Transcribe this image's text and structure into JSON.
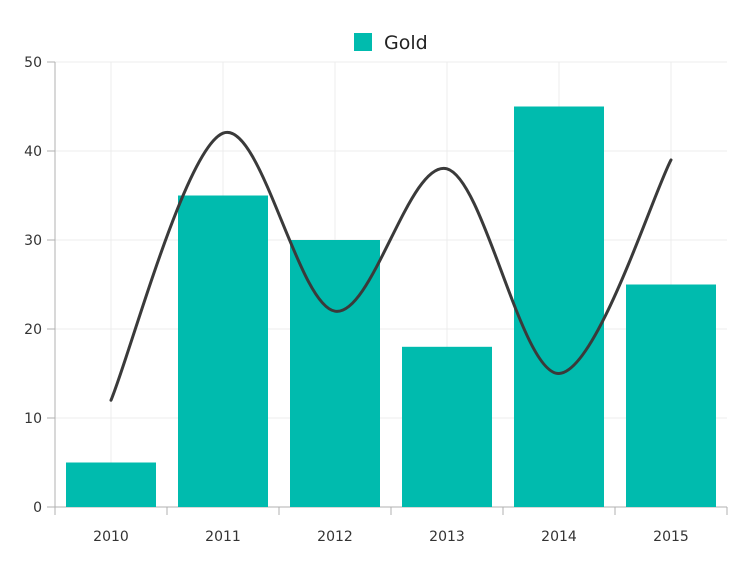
{
  "chart_data": {
    "type": "bar",
    "categories": [
      "2010",
      "2011",
      "2012",
      "2013",
      "2014",
      "2015"
    ],
    "series": [
      {
        "name": "Gold",
        "type": "bar",
        "values": [
          5,
          35,
          30,
          18,
          45,
          25
        ],
        "color": "#00BBAE"
      },
      {
        "type": "spline",
        "values": [
          12,
          42,
          22,
          38,
          15,
          39
        ],
        "color": "#3A3A3A"
      }
    ],
    "legend": {
      "position": "top-center",
      "items": [
        "Gold"
      ]
    },
    "ylim": [
      0,
      50
    ],
    "yticks": [
      0,
      10,
      20,
      30,
      40,
      50
    ],
    "grid": true,
    "title": "",
    "xlabel": "",
    "ylabel": ""
  }
}
